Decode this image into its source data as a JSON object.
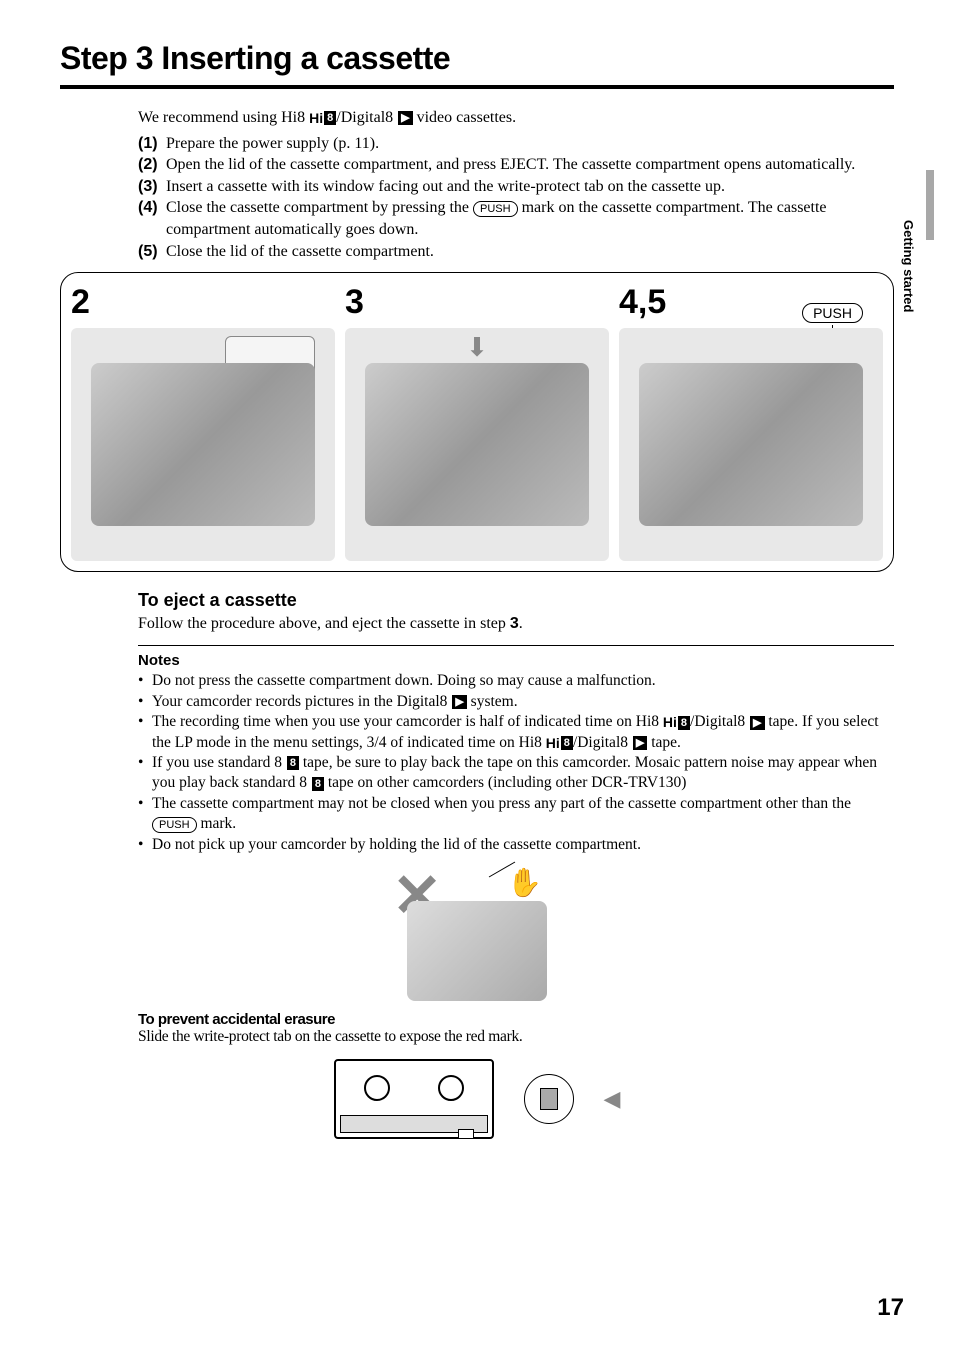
{
  "title": "Step 3  Inserting a cassette",
  "side_tab": "Getting started",
  "intro": {
    "recommend_pre": "We recommend using Hi8 ",
    "recommend_mid": "/Digital8 ",
    "recommend_post": " video cassettes."
  },
  "steps": [
    {
      "num": "(1)",
      "text": "Prepare the power supply (p. 11)."
    },
    {
      "num": "(2)",
      "text": "Open the lid of the cassette compartment, and press EJECT. The cassette compartment opens automatically."
    },
    {
      "num": "(3)",
      "text": "Insert a cassette with its window facing out and the write-protect tab on the cassette up."
    },
    {
      "num": "(4)",
      "pre": "Close the cassette compartment by pressing the ",
      "push": "PUSH",
      "post": " mark on the cassette compartment. The cassette compartment automatically goes down."
    },
    {
      "num": "(5)",
      "text": "Close the lid of the cassette compartment."
    }
  ],
  "diagram": {
    "panel1": "2",
    "panel2": "3",
    "panel3": "4,5",
    "push_label": "PUSH"
  },
  "eject": {
    "heading": "To eject a cassette",
    "text_pre": "Follow the procedure above, and eject the cassette in step ",
    "step_ref": "3",
    "text_post": "."
  },
  "notes": {
    "heading": "Notes",
    "items": [
      {
        "text": "Do not press the cassette compartment down. Doing so may cause a malfunction."
      },
      {
        "pre": "Your camcorder records pictures in the Digital8 ",
        "post": " system."
      },
      {
        "pre": "The recording time when you use your camcorder is half of indicated time on Hi8 ",
        "mid1": "/Digital8 ",
        "mid2": " tape. If you select the LP mode in the menu settings, 3/4 of indicated time on Hi8 ",
        "mid3": "/Digital8 ",
        "post": " tape."
      },
      {
        "pre": "If you use standard 8 ",
        "mid": " tape, be sure to play back the tape on this camcorder. Mosaic pattern noise may appear when you play back standard 8 ",
        "post": " tape on other camcorders (including other DCR-TRV130)"
      },
      {
        "pre": "The cassette compartment may not be closed when you press any part of the cassette compartment other than the ",
        "push": "PUSH",
        "post": " mark."
      },
      {
        "text": "Do not pick up your camcorder by holding the lid of the cassette compartment."
      }
    ]
  },
  "prevent": {
    "heading": "To prevent accidental erasure",
    "text": "Slide the write-protect tab on the cassette to expose the red mark."
  },
  "page_number": "17",
  "icons": {
    "hi8": "Hi",
    "hi8_box": "8",
    "d8": "▶",
    "std8": "8"
  }
}
